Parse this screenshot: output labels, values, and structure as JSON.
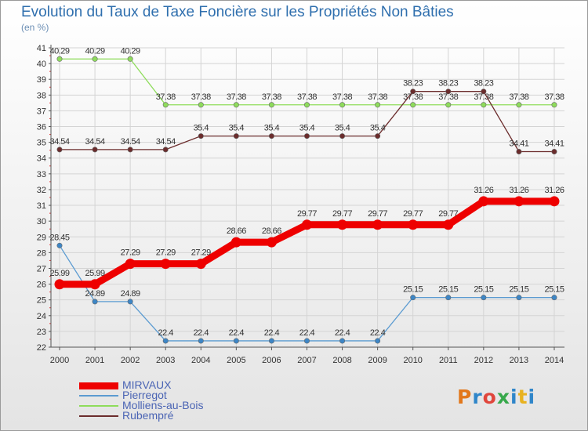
{
  "header": {
    "title": "Evolution du Taux de Taxe Foncière sur les Propriétés Non Bâties",
    "unit": "(en %)"
  },
  "logo": {
    "text": "Proxiti",
    "colors": [
      "#e2781c",
      "#2f86c9",
      "#e0463c",
      "#37a84b",
      "#2f86c9",
      "#e8b220",
      "#2f86c9"
    ]
  },
  "legend": {
    "items": [
      {
        "label": "MIRVAUX",
        "color": "#ee0000",
        "thick": true
      },
      {
        "label": "Pierregot",
        "color": "#5b9bd1",
        "thick": false
      },
      {
        "label": "Molliens-au-Bois",
        "color": "#8edc5b",
        "thick": false
      },
      {
        "label": "Rubempré",
        "color": "#6b2c2c",
        "thick": false
      }
    ]
  },
  "chart_data": {
    "type": "line",
    "title": "Evolution du Taux de Taxe Foncière sur les Propriétés Non Bâties",
    "ylabel": "(en %)",
    "xlabel": "",
    "ylim": [
      22,
      41
    ],
    "y_ticks": [
      "22",
      "23",
      "24",
      "25",
      "26",
      "27",
      "28",
      "29",
      "30",
      "31",
      "32",
      "33",
      "34",
      "35",
      "36",
      "37",
      "38",
      "39",
      "40",
      "41"
    ],
    "categories": [
      "2000",
      "2001",
      "2002",
      "2003",
      "2004",
      "2005",
      "2006",
      "2007",
      "2008",
      "2009",
      "2010",
      "2011",
      "2012",
      "2013",
      "2014"
    ],
    "series": [
      {
        "name": "Molliens-au-Bois",
        "color": "#8edc5b",
        "marker": "#8edc5b",
        "thick": false,
        "label_offset": "above",
        "values": [
          40.29,
          40.29,
          40.29,
          37.38,
          37.38,
          37.38,
          37.38,
          37.38,
          37.38,
          37.38,
          37.38,
          37.38,
          37.38,
          37.38,
          37.38
        ],
        "labels": [
          "40.29",
          "40.29",
          "40.29",
          "37.38",
          "37.38",
          "37.38",
          "37.38",
          "37.38",
          "37.38",
          "37.38",
          "37.38",
          "37.38",
          "37.38",
          "37.38",
          "37.38"
        ]
      },
      {
        "name": "Rubempré",
        "color": "#6b2c2c",
        "marker": "#6b2c2c",
        "thick": false,
        "label_offset": "above",
        "values": [
          34.54,
          34.54,
          34.54,
          34.54,
          35.4,
          35.4,
          35.4,
          35.4,
          35.4,
          35.4,
          38.23,
          38.23,
          38.23,
          34.41,
          34.41
        ],
        "labels": [
          "34.54",
          "34.54",
          "34.54",
          "34.54",
          "35.4",
          "35.4",
          "35.4",
          "35.4",
          "35.4",
          "35.4",
          "38.23",
          "38.23",
          "38.23",
          "34.41",
          "34.41"
        ]
      },
      {
        "name": "Pierregot",
        "color": "#5b9bd1",
        "marker": "#3d86c6",
        "thick": false,
        "label_offset": "above",
        "values": [
          28.45,
          24.89,
          24.89,
          22.4,
          22.4,
          22.4,
          22.4,
          22.4,
          22.4,
          22.4,
          25.15,
          25.15,
          25.15,
          25.15,
          25.15
        ],
        "labels": [
          "28.45",
          "24.89",
          "24.89",
          "22.4",
          "22.4",
          "22.4",
          "22.4",
          "22.4",
          "22.4",
          "22.4",
          "25.15",
          "25.15",
          "25.15",
          "25.15",
          "25.15"
        ]
      },
      {
        "name": "MIRVAUX",
        "color": "#ee0000",
        "marker": "#ee0000",
        "thick": true,
        "label_offset": "above",
        "values": [
          25.99,
          25.99,
          27.29,
          27.29,
          27.29,
          28.66,
          28.66,
          29.77,
          29.77,
          29.77,
          29.77,
          29.77,
          31.26,
          31.26,
          31.26
        ],
        "labels": [
          "25.99",
          "25.99",
          "27.29",
          "27.29",
          "27.29",
          "28.66",
          "28.66",
          "29.77",
          "29.77",
          "29.77",
          "29.77",
          "29.77",
          "31.26",
          "31.26",
          "31.26"
        ]
      }
    ]
  }
}
